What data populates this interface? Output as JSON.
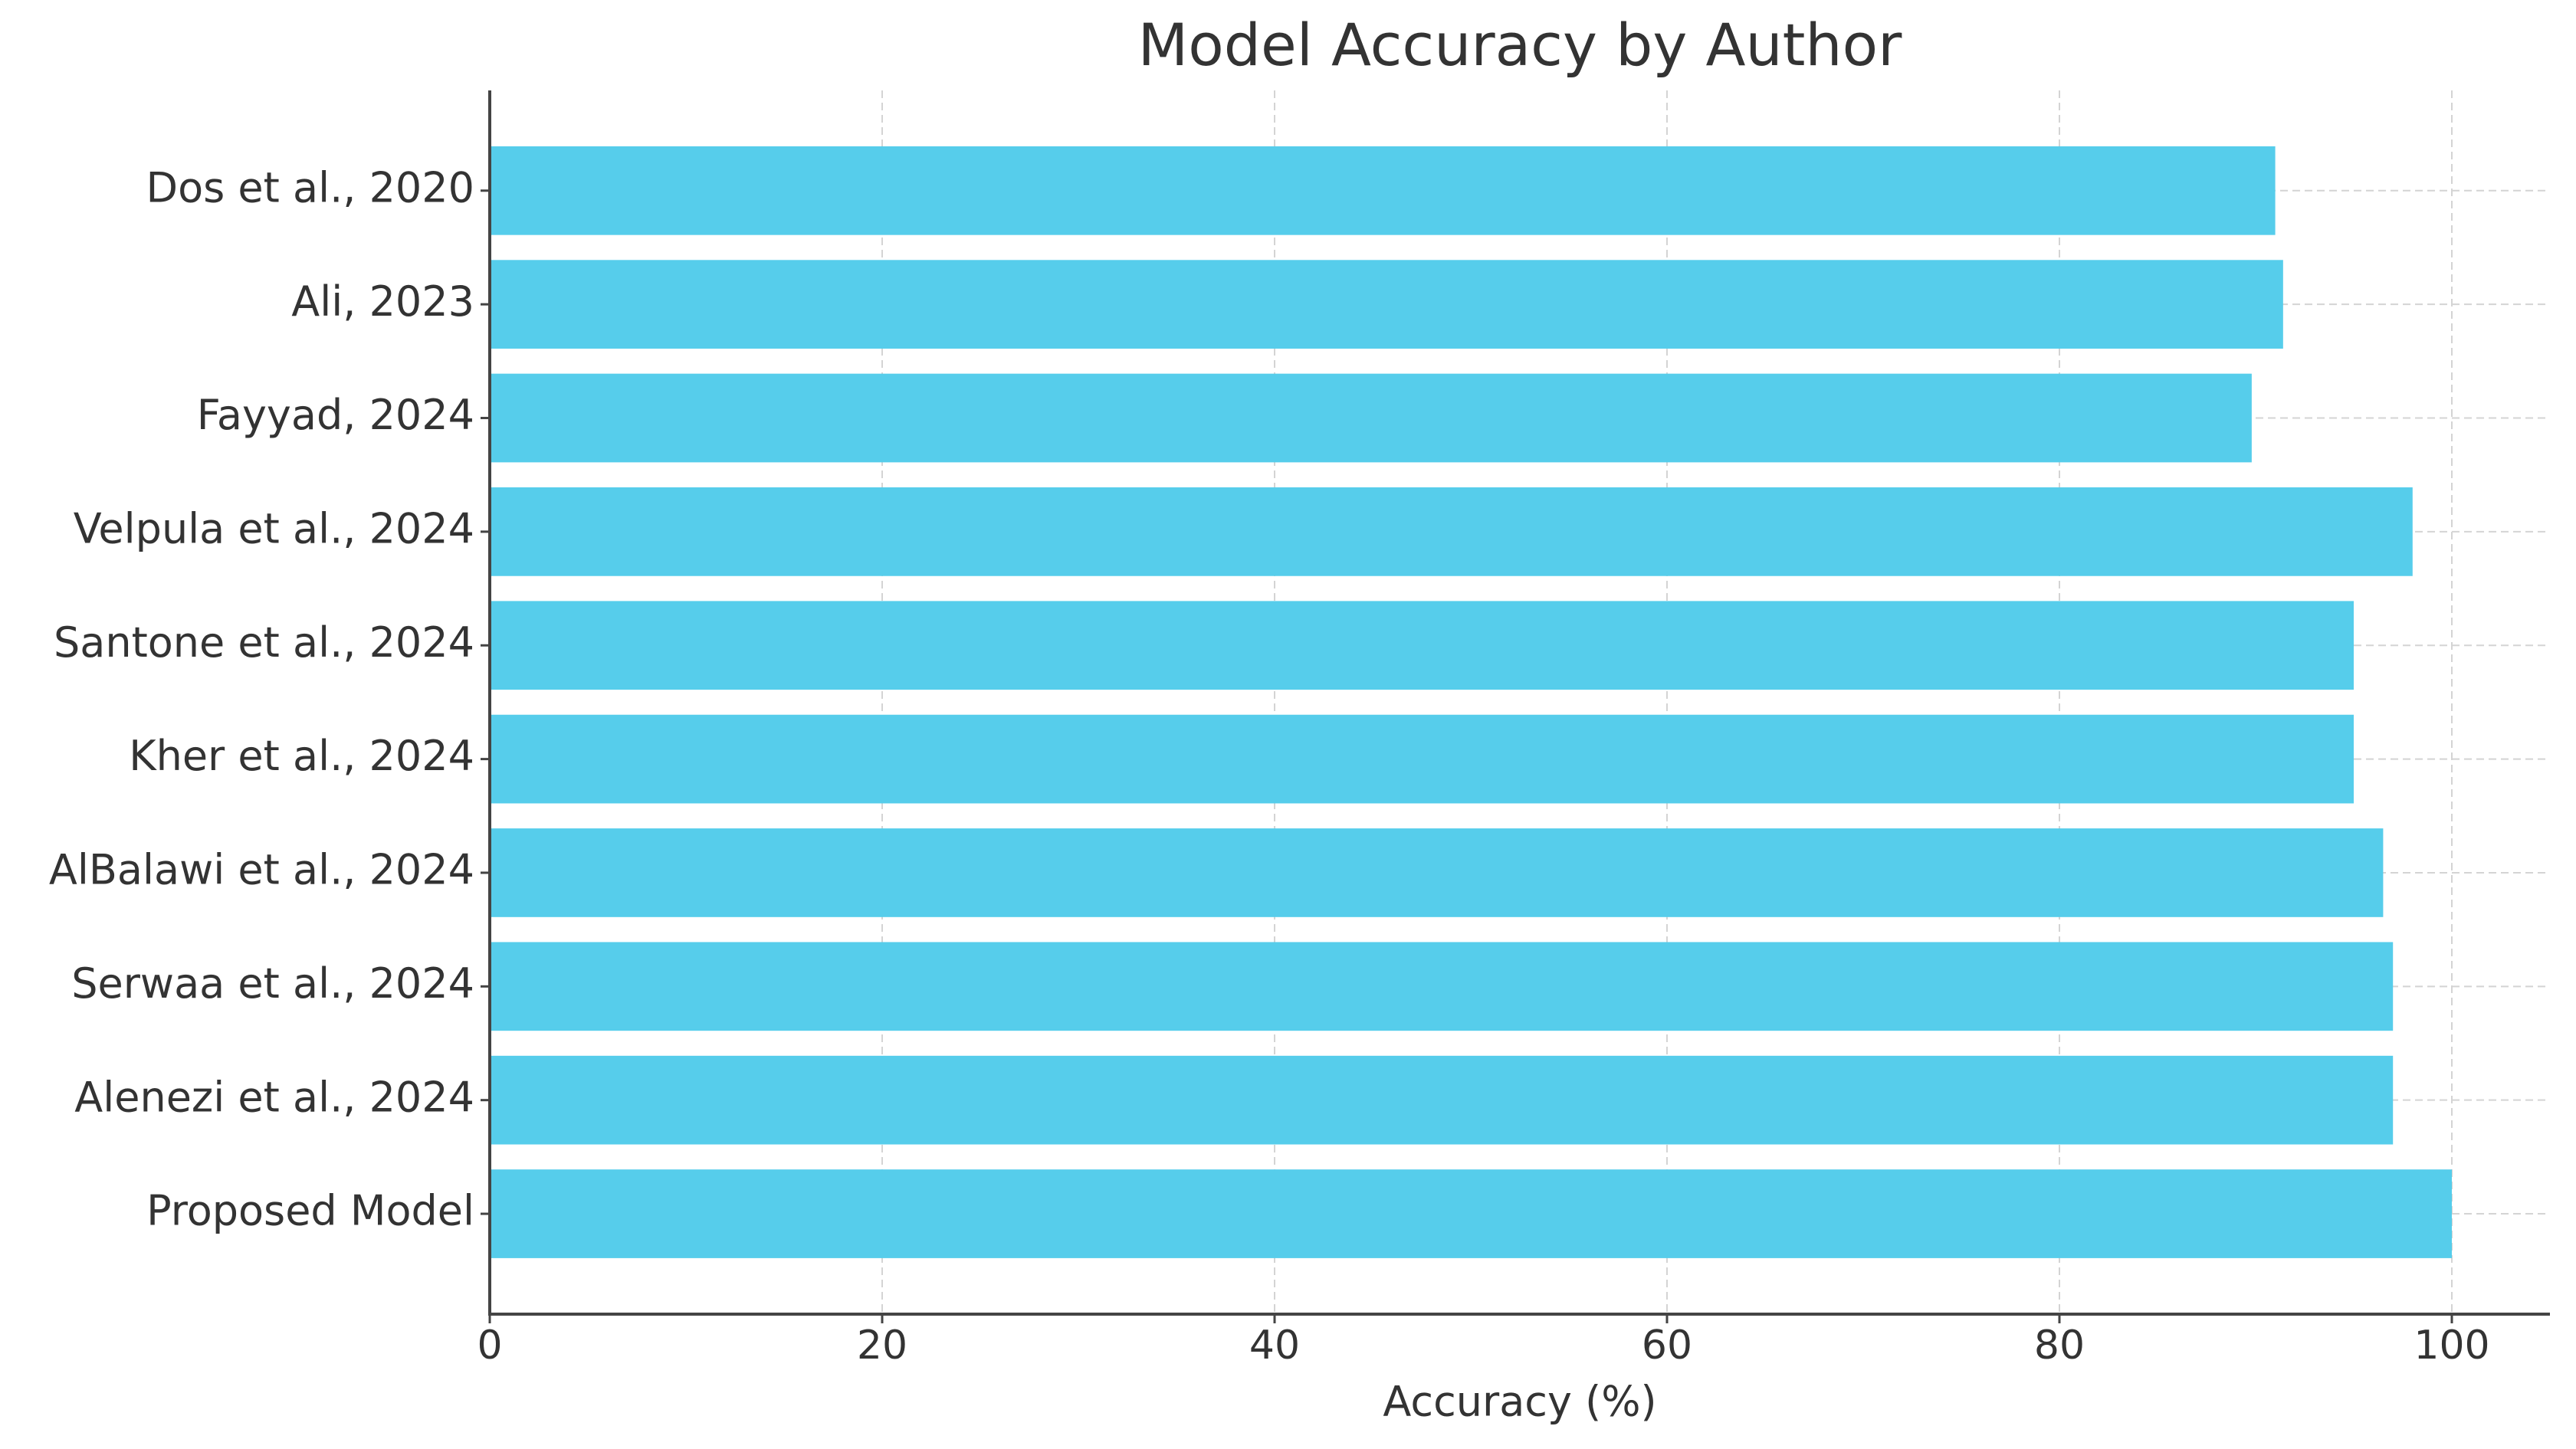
{
  "chart_data": {
    "type": "barh",
    "title": "Model Accuracy by Author",
    "x_label": "Accuracy (%)",
    "categories": [
      "Dos et al., 2020",
      "Ali, 2023",
      "Fayyad, 2024",
      "Velpula et al., 2024",
      "Santone et al., 2024",
      "Kher et al., 2024",
      "AlBalawi et al., 2024",
      "Serwaa et al., 2024",
      "Alenezi et al., 2024",
      "Proposed Model"
    ],
    "values": [
      91,
      91.4,
      89.8,
      98,
      95,
      95,
      96.5,
      97,
      97,
      100
    ],
    "color": "#56cdeb",
    "xlim": [
      0,
      105
    ],
    "xticks": [
      0,
      20,
      40,
      60,
      80,
      100
    ],
    "grid": true
  }
}
